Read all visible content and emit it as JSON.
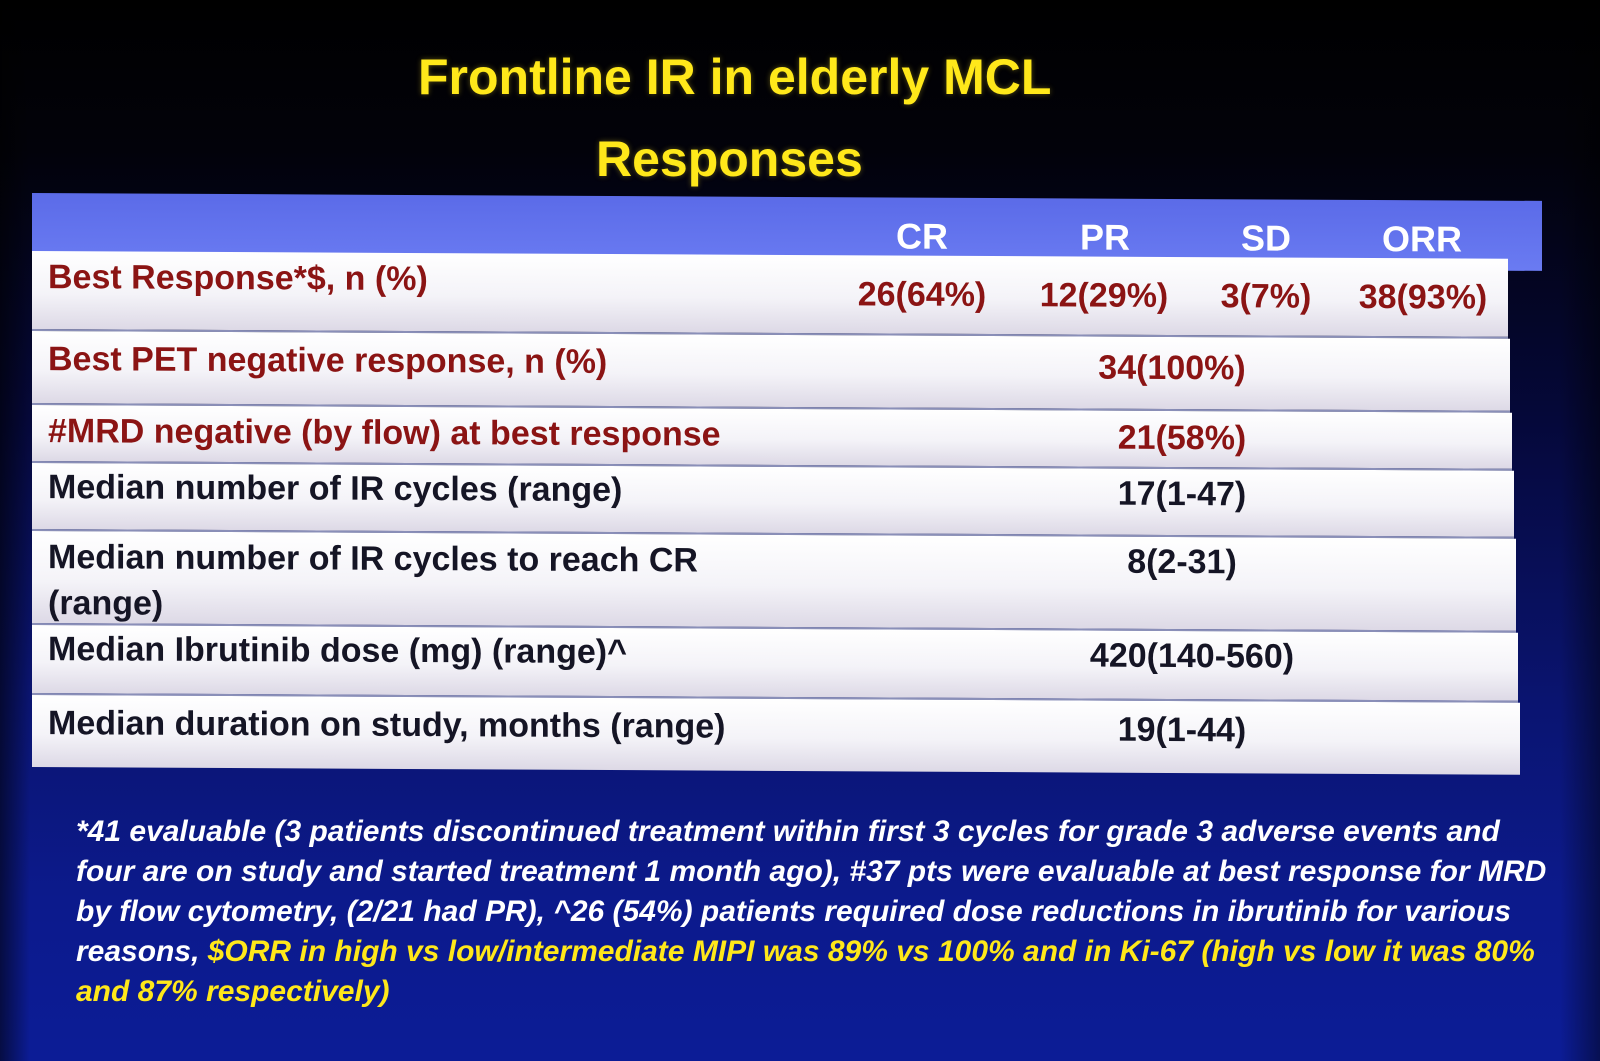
{
  "title": {
    "line1": "Frontline IR in elderly MCL",
    "line2": "Responses"
  },
  "colors": {
    "title_yellow": "#ffe81a",
    "header_blue": "#6a7bf2",
    "label_red": "#8b1414",
    "background_navy": "#0a1470"
  },
  "table": {
    "columns": [
      "CR",
      "PR",
      "SD",
      "ORR"
    ],
    "rows": [
      {
        "label": "Best Response*$, n (%)",
        "values": [
          "26(64%)",
          "12(29%)",
          "3(7%)",
          "38(93%)"
        ]
      },
      {
        "label": "Best PET negative response, n (%)",
        "value": "34(100%)"
      },
      {
        "label": "#MRD negative (by flow) at best response",
        "value": "21(58%)"
      },
      {
        "label": "Median number of IR cycles (range)",
        "value": "17(1-47)"
      },
      {
        "label_line1": "Median number of IR cycles to reach CR",
        "label_line2": "(range)",
        "value": "8(2-31)"
      },
      {
        "label": "Median Ibrutinib dose (mg) (range)^",
        "value": "420(140-560)"
      },
      {
        "label": "Median duration on study, months (range)",
        "value": "19(1-44)"
      }
    ]
  },
  "footnote": {
    "white_text": "*41 evaluable (3 patients discontinued treatment within first 3 cycles for grade 3 adverse events and four are on study and started treatment 1 month ago), #37 pts were evaluable at best response for MRD by flow cytometry, (2/21 had PR),  ^26 (54%) patients required dose reductions in ibrutinib for various reasons, ",
    "yellow_text": "$ORR in high vs low/intermediate MIPI was 89% vs 100% and in Ki-67 (high vs low it was 80% and 87% respectively)"
  }
}
